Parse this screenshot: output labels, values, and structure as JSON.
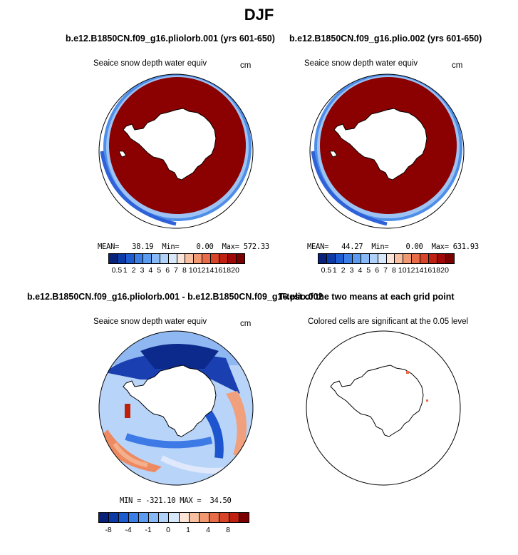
{
  "figure": {
    "title": "DJF"
  },
  "panel_top_left": {
    "title": "b.e12.B1850CN.f09_g16.pliolorb.001 (yrs 601-650)",
    "variable": "Seaice snow depth water equiv",
    "units": "cm",
    "stats": "MEAN=   38.19  Min=    0.00  Max= 572.33"
  },
  "panel_top_right": {
    "title": "b.e12.B1850CN.f09_g16.plio.002 (yrs 601-650)",
    "variable": "Seaice snow depth water equiv",
    "units": "cm",
    "stats": "MEAN=   44.27  Min=    0.00  Max= 631.93"
  },
  "panel_bottom_left": {
    "title": "b.e12.B1850CN.f09_g16.pliolorb.001 - b.e12.B1850CN.f09_g16.plio.002",
    "variable": "Seaice snow depth water equiv",
    "units": "cm",
    "stats": "MIN = -321.10 MAX =  34.50"
  },
  "panel_bottom_right": {
    "title": "T-test of the two means at each grid point",
    "subtitle": "Colored cells are significant at the 0.05 level"
  },
  "colorbar_top": {
    "colors": [
      "#08217a",
      "#0c3aa6",
      "#1c5cd0",
      "#3a7ee6",
      "#5b9cf0",
      "#86b9f5",
      "#b0d2f8",
      "#d8e8fb",
      "#fde4d6",
      "#f8c0a0",
      "#f29870",
      "#e86c48",
      "#d84428",
      "#c02010",
      "#a00808",
      "#7a0000"
    ],
    "labels": [
      "0.5",
      "1",
      "2",
      "3",
      "4",
      "5",
      "6",
      "7",
      "8",
      "10",
      "12",
      "14",
      "16",
      "18",
      "20"
    ]
  },
  "colorbar_bottom": {
    "colors": [
      "#08217a",
      "#0c3aa6",
      "#1c5cd0",
      "#3a7ee6",
      "#5b9cf0",
      "#86b9f5",
      "#b0d2f8",
      "#d8e8fb",
      "#fde4d6",
      "#f8c0a0",
      "#f29870",
      "#e86c48",
      "#d84428",
      "#c02010",
      "#7a0000"
    ],
    "labels": [
      "-8",
      "-4",
      "-1",
      "0",
      "1",
      "4",
      "8"
    ]
  }
}
